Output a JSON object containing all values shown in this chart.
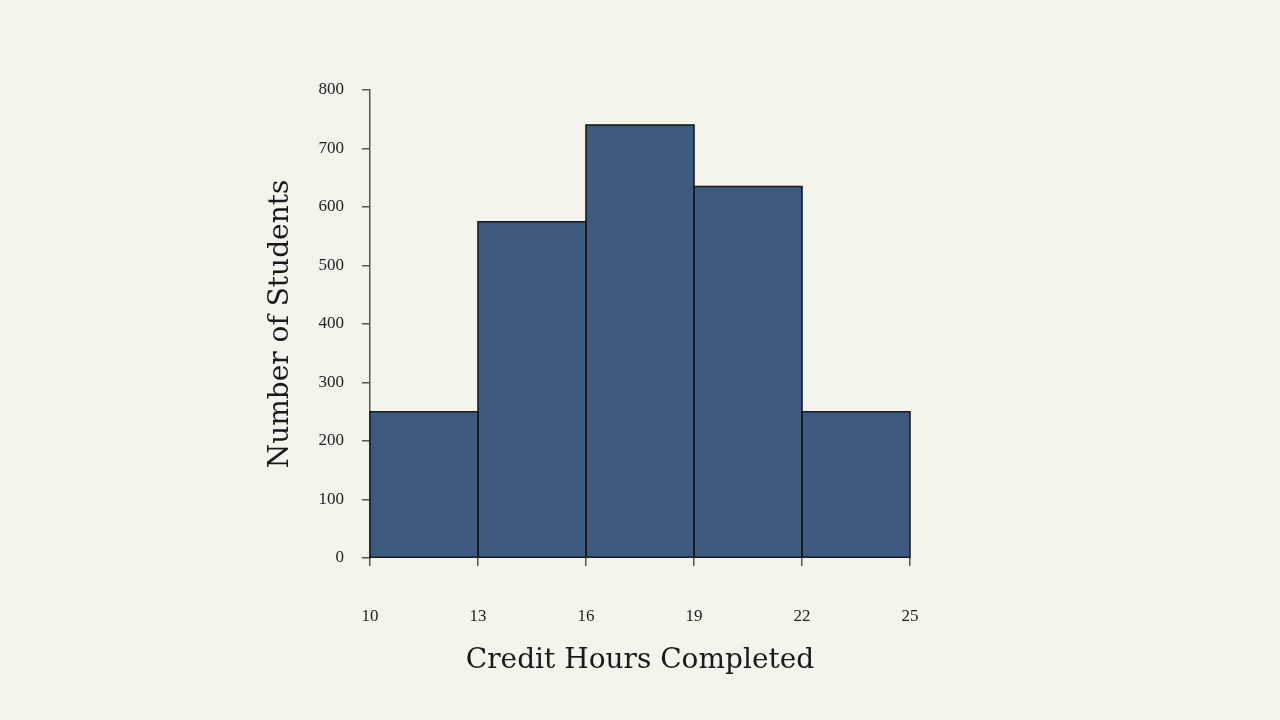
{
  "chart_data": {
    "type": "histogram",
    "xlabel": "Credit Hours Completed",
    "ylabel": "Number of Students",
    "bins": [
      10,
      13,
      16,
      19,
      22,
      25
    ],
    "values": [
      250,
      575,
      740,
      635,
      250
    ],
    "color": "#3d5a80",
    "xlim": [
      10,
      25
    ],
    "xticks": [
      10,
      13,
      16,
      19,
      22,
      25
    ],
    "ylim": [
      0,
      800
    ],
    "yticks": [
      0,
      100,
      200,
      300,
      400,
      500,
      600,
      700,
      800
    ]
  }
}
